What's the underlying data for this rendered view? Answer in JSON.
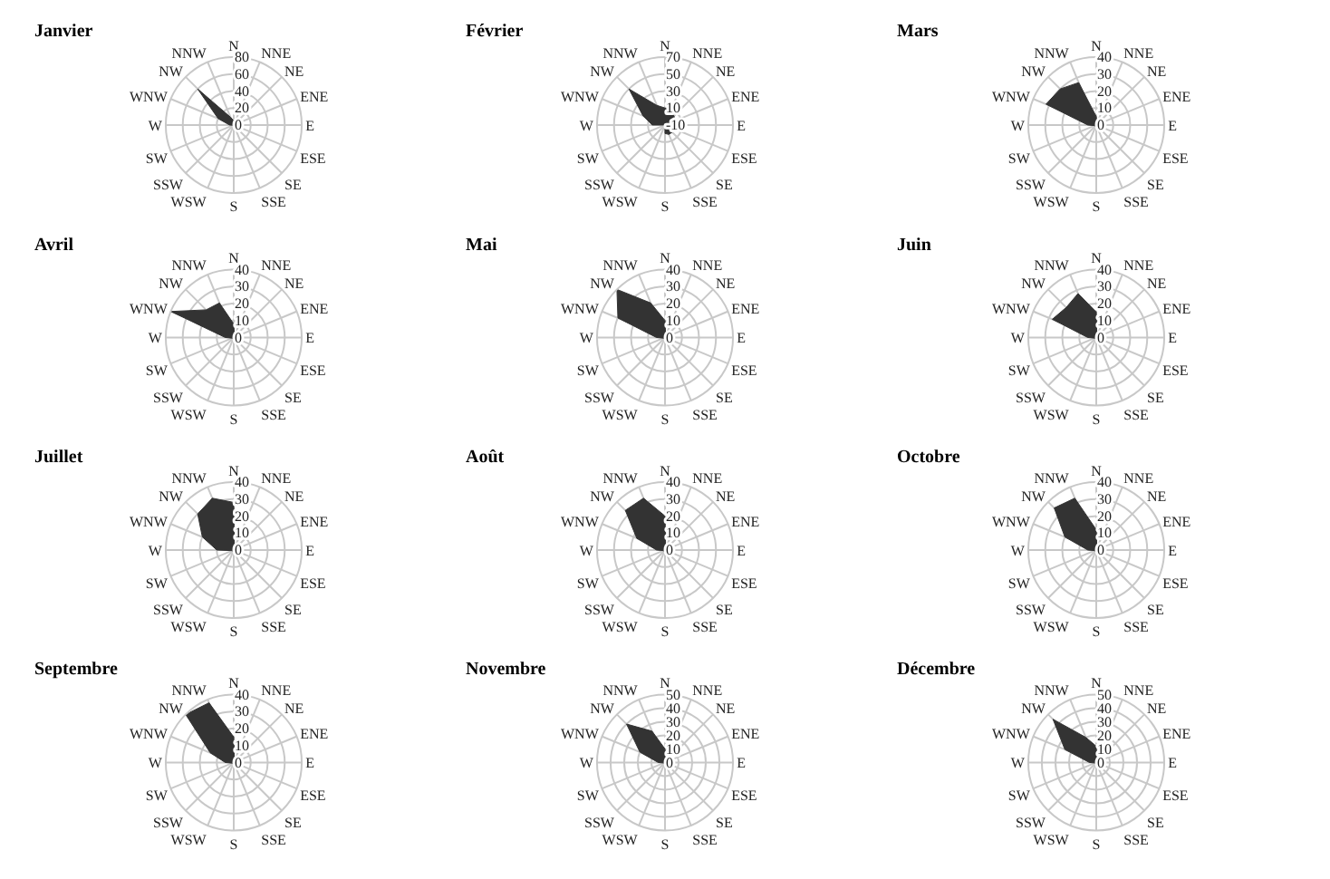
{
  "chart_data": [
    {
      "type": "radar",
      "title": "Janvier",
      "categories": [
        "N",
        "NNE",
        "NE",
        "ENE",
        "E",
        "ESE",
        "SE",
        "SSE",
        "S",
        "WSW",
        "SSW",
        "SW",
        "W",
        "WNW",
        "NW",
        "NNW"
      ],
      "series": [
        {
          "color": "#333333",
          "values": [
            5,
            2,
            1,
            1,
            1,
            1,
            1,
            1,
            1,
            1,
            1,
            1,
            5,
            20,
            60,
            10
          ]
        }
      ],
      "ylim": [
        0,
        80
      ],
      "yticks": [
        0,
        20,
        40,
        60,
        80
      ],
      "grid": true,
      "marker": "none"
    },
    {
      "type": "radar",
      "title": "Février",
      "categories": [
        "N",
        "NNE",
        "NE",
        "ENE",
        "E",
        "ESE",
        "SE",
        "SSE",
        "S",
        "WSW",
        "SSW",
        "SW",
        "W",
        "WNW",
        "NW",
        "NNW"
      ],
      "series": [
        {
          "color": "#333333",
          "values": [
            10,
            8,
            5,
            3,
            5,
            3,
            2,
            2,
            0,
            -10,
            -10,
            -10,
            5,
            18,
            50,
            15
          ]
        }
      ],
      "ylim": [
        -10,
        70
      ],
      "yticks": [
        -10,
        10,
        30,
        50,
        70
      ],
      "grid": true,
      "marker": "none"
    },
    {
      "type": "radar",
      "title": "Mars",
      "categories": [
        "N",
        "NNE",
        "NE",
        "ENE",
        "E",
        "ESE",
        "SE",
        "SSE",
        "S",
        "WSW",
        "SSW",
        "SW",
        "W",
        "WNW",
        "NW",
        "NNW"
      ],
      "series": [
        {
          "color": "#333333",
          "values": [
            5,
            1,
            1,
            1,
            1,
            1,
            1,
            1,
            1,
            1,
            1,
            1,
            5,
            32,
            30,
            27
          ]
        }
      ],
      "ylim": [
        0,
        40
      ],
      "yticks": [
        0,
        10,
        20,
        30,
        40
      ],
      "grid": true,
      "marker": "none"
    },
    {
      "type": "radar",
      "title": "Avril",
      "categories": [
        "N",
        "NNE",
        "NE",
        "ENE",
        "E",
        "ESE",
        "SE",
        "SSE",
        "S",
        "WSW",
        "SSW",
        "SW",
        "W",
        "WNW",
        "NW",
        "NNW"
      ],
      "series": [
        {
          "color": "#333333",
          "values": [
            8,
            1,
            1,
            1,
            1,
            1,
            1,
            1,
            1,
            1,
            1,
            1,
            5,
            40,
            23,
            22
          ]
        }
      ],
      "ylim": [
        0,
        40
      ],
      "yticks": [
        0,
        10,
        20,
        30,
        40
      ],
      "grid": true,
      "marker": "none"
    },
    {
      "type": "radar",
      "title": "Mai",
      "categories": [
        "N",
        "NNE",
        "NE",
        "ENE",
        "E",
        "ESE",
        "SE",
        "SSE",
        "S",
        "WSW",
        "SSW",
        "SW",
        "W",
        "WNW",
        "NW",
        "NNW"
      ],
      "series": [
        {
          "color": "#333333",
          "values": [
            10,
            1,
            1,
            1,
            1,
            1,
            1,
            1,
            1,
            1,
            1,
            1,
            5,
            30,
            40,
            22
          ]
        }
      ],
      "ylim": [
        0,
        40
      ],
      "yticks": [
        0,
        10,
        20,
        30,
        40
      ],
      "grid": true,
      "marker": "none"
    },
    {
      "type": "radar",
      "title": "Juin",
      "categories": [
        "N",
        "NNE",
        "NE",
        "ENE",
        "E",
        "ESE",
        "SE",
        "SSE",
        "S",
        "WSW",
        "SSW",
        "SW",
        "W",
        "WNW",
        "NW",
        "NNW"
      ],
      "series": [
        {
          "color": "#333333",
          "values": [
            15,
            1,
            1,
            1,
            1,
            1,
            1,
            1,
            1,
            1,
            1,
            1,
            5,
            28,
            25,
            28
          ]
        }
      ],
      "ylim": [
        0,
        40
      ],
      "yticks": [
        0,
        10,
        20,
        30,
        40
      ],
      "grid": true,
      "marker": "none"
    },
    {
      "type": "radar",
      "title": "Juillet",
      "categories": [
        "N",
        "NNE",
        "NE",
        "ENE",
        "E",
        "ESE",
        "SE",
        "SSE",
        "S",
        "WSW",
        "SSW",
        "SW",
        "W",
        "WNW",
        "NW",
        "NNW"
      ],
      "series": [
        {
          "color": "#333333",
          "values": [
            28,
            1,
            1,
            1,
            1,
            1,
            1,
            1,
            1,
            1,
            1,
            1,
            10,
            20,
            30,
            33
          ]
        }
      ],
      "ylim": [
        0,
        40
      ],
      "yticks": [
        0,
        10,
        20,
        30,
        40
      ],
      "grid": true,
      "marker": "none"
    },
    {
      "type": "radar",
      "title": "Août",
      "categories": [
        "N",
        "NNE",
        "NE",
        "ENE",
        "E",
        "ESE",
        "SE",
        "SSE",
        "S",
        "WSW",
        "SSW",
        "SW",
        "W",
        "WNW",
        "NW",
        "NNW"
      ],
      "series": [
        {
          "color": "#333333",
          "values": [
            20,
            1,
            1,
            1,
            1,
            1,
            1,
            1,
            1,
            1,
            1,
            1,
            5,
            18,
            33,
            33
          ]
        }
      ],
      "ylim": [
        0,
        40
      ],
      "yticks": [
        0,
        10,
        20,
        30,
        40
      ],
      "grid": true,
      "marker": "none"
    },
    {
      "type": "radar",
      "title": "Octobre",
      "categories": [
        "N",
        "NNE",
        "NE",
        "ENE",
        "E",
        "ESE",
        "SE",
        "SSE",
        "S",
        "WSW",
        "SSW",
        "SW",
        "W",
        "WNW",
        "NW",
        "NNW"
      ],
      "series": [
        {
          "color": "#333333",
          "values": [
            12,
            1,
            1,
            1,
            1,
            1,
            1,
            1,
            1,
            1,
            1,
            1,
            5,
            20,
            35,
            33
          ]
        }
      ],
      "ylim": [
        0,
        40
      ],
      "yticks": [
        0,
        10,
        20,
        30,
        40
      ],
      "grid": true,
      "marker": "none"
    },
    {
      "type": "radar",
      "title": "Septembre",
      "categories": [
        "N",
        "NNE",
        "NE",
        "ENE",
        "E",
        "ESE",
        "SE",
        "SSE",
        "S",
        "WSW",
        "SSW",
        "SW",
        "W",
        "WNW",
        "NW",
        "NNW"
      ],
      "series": [
        {
          "color": "#333333",
          "values": [
            15,
            1,
            1,
            1,
            1,
            1,
            1,
            1,
            1,
            1,
            1,
            1,
            5,
            15,
            40,
            38
          ]
        }
      ],
      "ylim": [
        0,
        40
      ],
      "yticks": [
        0,
        10,
        20,
        30,
        40
      ],
      "grid": true,
      "marker": "none"
    },
    {
      "type": "radar",
      "title": "Novembre",
      "categories": [
        "N",
        "NNE",
        "NE",
        "ENE",
        "E",
        "ESE",
        "SE",
        "SSE",
        "S",
        "WSW",
        "SSW",
        "SW",
        "W",
        "WNW",
        "NW",
        "NNW"
      ],
      "series": [
        {
          "color": "#333333",
          "values": [
            10,
            1,
            1,
            1,
            1,
            1,
            1,
            1,
            1,
            1,
            1,
            1,
            5,
            20,
            40,
            25
          ]
        }
      ],
      "ylim": [
        0,
        50
      ],
      "yticks": [
        0,
        10,
        20,
        30,
        40,
        50
      ],
      "grid": true,
      "marker": "none"
    },
    {
      "type": "radar",
      "title": "Décembre",
      "categories": [
        "N",
        "NNE",
        "NE",
        "ENE",
        "E",
        "ESE",
        "SE",
        "SSE",
        "S",
        "WSW",
        "SSW",
        "SW",
        "W",
        "WNW",
        "NW",
        "NNW"
      ],
      "series": [
        {
          "color": "#333333",
          "values": [
            12,
            1,
            1,
            1,
            1,
            1,
            1,
            1,
            1,
            1,
            1,
            1,
            5,
            25,
            45,
            20
          ]
        }
      ],
      "ylim": [
        0,
        50
      ],
      "yticks": [
        0,
        10,
        20,
        30,
        40,
        50
      ],
      "grid": true,
      "marker": "none"
    }
  ]
}
